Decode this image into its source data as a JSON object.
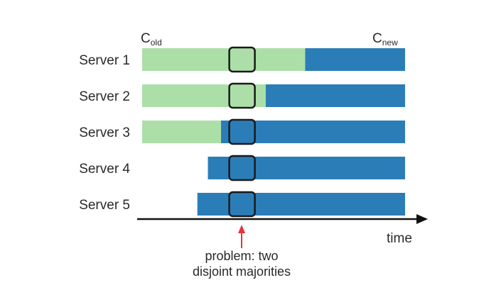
{
  "legend": {
    "old_config": {
      "base": "C",
      "sub": "old",
      "color": "#acdfa8"
    },
    "new_config": {
      "base": "C",
      "sub": "new",
      "color": "#2b7db8"
    }
  },
  "servers": [
    {
      "label": "Server 1",
      "old_from": 0.0,
      "switch_at": 0.62
    },
    {
      "label": "Server 2",
      "old_from": 0.0,
      "switch_at": 0.47
    },
    {
      "label": "Server 3",
      "old_from": 0.0,
      "switch_at": 0.3
    },
    {
      "label": "Server 4",
      "old_from": null,
      "switch_at": 0.25
    },
    {
      "label": "Server 5",
      "old_from": null,
      "switch_at": 0.21
    }
  ],
  "problem_window_at": 0.38,
  "axis": {
    "label": "time"
  },
  "annotation": {
    "line1": "problem: two",
    "line2": "disjoint majorities",
    "color": "#e8333a"
  }
}
